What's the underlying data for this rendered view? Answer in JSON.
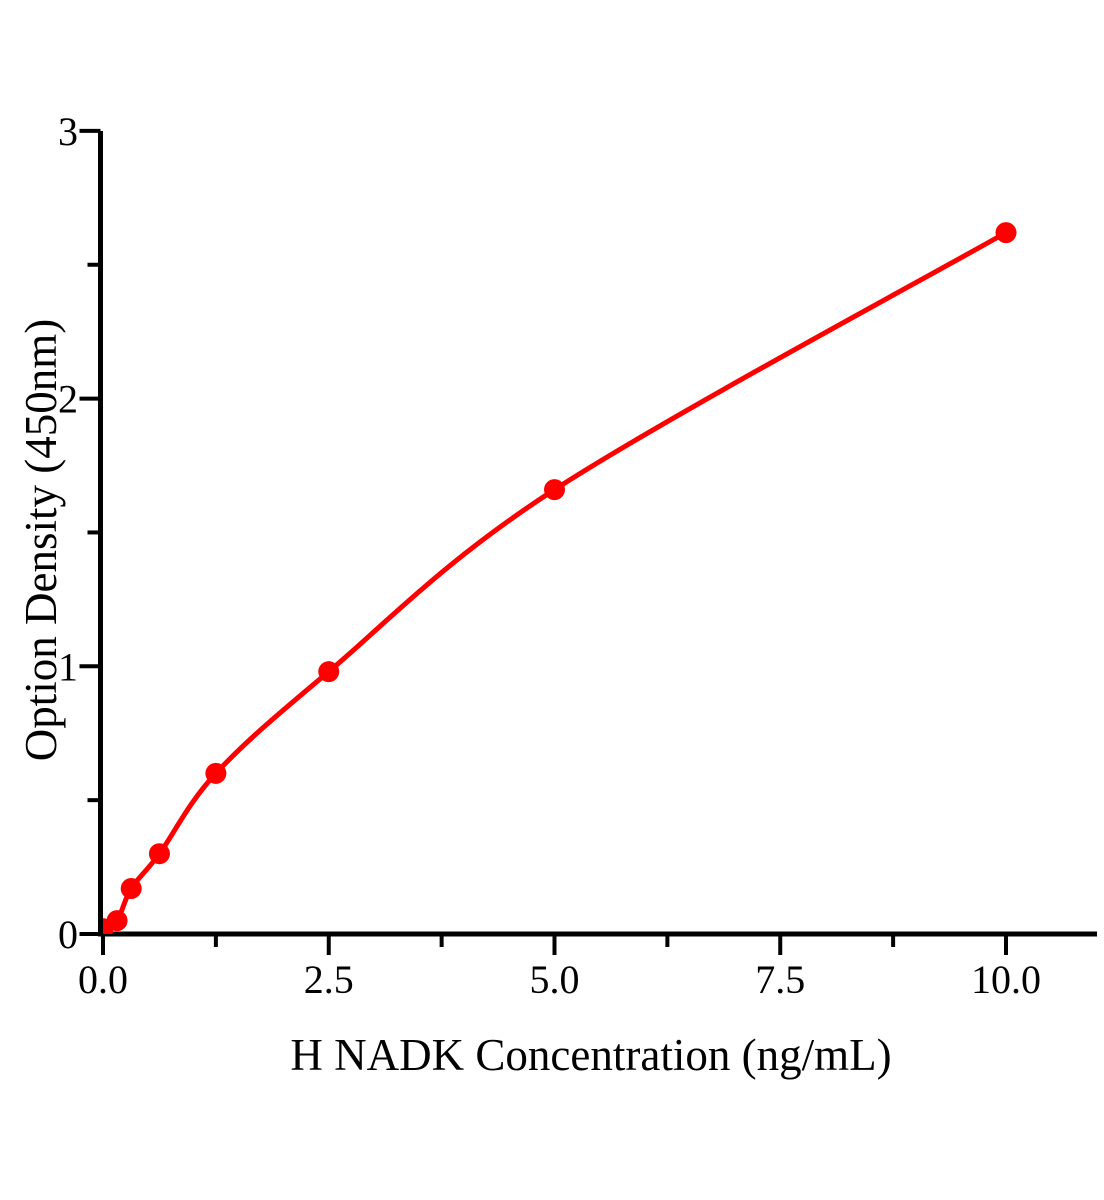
{
  "chart_data": {
    "type": "line",
    "xlabel": "H NADK Concentration（ng/mL）",
    "ylabel": "Option Density（450nm）",
    "x": [
      0,
      0.156,
      0.3125,
      0.625,
      1.25,
      2.5,
      5,
      10
    ],
    "y": [
      0.02,
      0.05,
      0.17,
      0.3,
      0.6,
      0.98,
      1.66,
      2.62
    ],
    "xlim": [
      0,
      11
    ],
    "ylim": [
      0,
      3
    ],
    "x_major_ticks": [
      0,
      2.5,
      5,
      7.5,
      10
    ],
    "x_major_tick_labels": [
      "0.0",
      "2.5",
      "5.0",
      "7.5",
      "10.0"
    ],
    "x_minor_ticks": [
      1.25,
      3.75,
      6.25,
      8.75
    ],
    "y_major_ticks": [
      0,
      1,
      2,
      3
    ],
    "y_major_tick_labels": [
      "0",
      "1",
      "2",
      "3"
    ],
    "y_minor_ticks": [
      0.5,
      1.5,
      2.5
    ],
    "grid": false,
    "legend": "none",
    "marker": "circle",
    "line_color": "#ff0000",
    "marker_color": "#ff0000",
    "axis_color": "#000000",
    "text_color": "#000000"
  }
}
